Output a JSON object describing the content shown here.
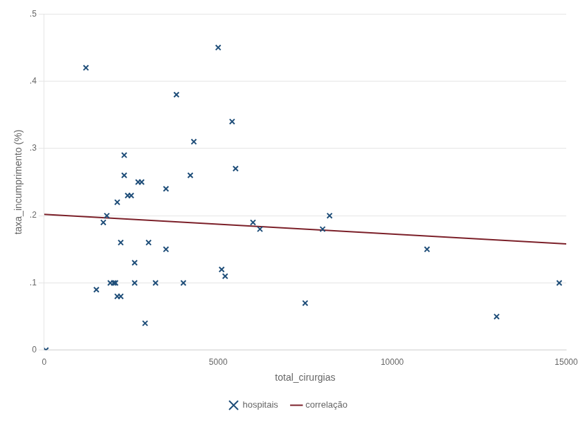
{
  "chart_data": {
    "type": "scatter",
    "xlabel": "total_cirurgias",
    "ylabel": "taxa_incumprimento (%)",
    "series": [
      {
        "name": "hospitais",
        "type": "scatter",
        "color": "#1F4E79",
        "marker": "x",
        "x": [
          50,
          1200,
          1500,
          1700,
          1800,
          1900,
          2000,
          2050,
          2100,
          2100,
          2200,
          2200,
          2300,
          2300,
          2400,
          2500,
          2600,
          2600,
          2700,
          2800,
          2900,
          3000,
          3200,
          3500,
          3500,
          3800,
          4000,
          4200,
          4300,
          5000,
          5100,
          5200,
          5400,
          5500,
          6000,
          6200,
          7500,
          8000,
          8200,
          11000,
          13000,
          14800
        ],
        "values": [
          0.0,
          0.42,
          0.09,
          0.19,
          0.2,
          0.1,
          0.1,
          0.1,
          0.08,
          0.22,
          0.08,
          0.16,
          0.29,
          0.26,
          0.23,
          0.23,
          0.1,
          0.13,
          0.25,
          0.25,
          0.04,
          0.16,
          0.1,
          0.15,
          0.24,
          0.38,
          0.1,
          0.26,
          0.31,
          0.45,
          0.12,
          0.11,
          0.34,
          0.27,
          0.19,
          0.18,
          0.07,
          0.18,
          0.2,
          0.15,
          0.05,
          0.1
        ]
      },
      {
        "name": "correlação",
        "type": "line",
        "color": "#7B1F28",
        "line_style": "solid",
        "x": [
          0,
          15000
        ],
        "values": [
          0.202,
          0.158
        ]
      }
    ],
    "xlim": [
      0,
      15000
    ],
    "ylim": [
      0,
      0.5
    ],
    "xticks": [
      0,
      5000,
      10000,
      15000
    ],
    "yticks": [
      0,
      {
        "value": 0.1,
        "label": ".1"
      },
      {
        "value": 0.2,
        "label": ".2"
      },
      {
        "value": 0.3,
        "label": ".3"
      },
      {
        "value": 0.4,
        "label": ".4"
      },
      {
        "value": 0.5,
        "label": ".5"
      }
    ],
    "grid": "y",
    "legend": "bottom"
  }
}
